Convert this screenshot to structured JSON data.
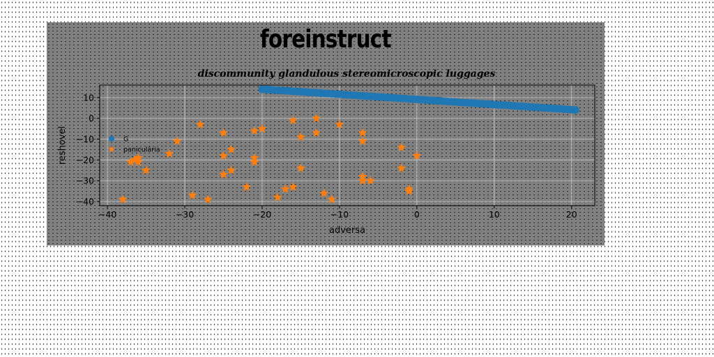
{
  "chart_data": {
    "type": "scatter",
    "title": "foreinstruct",
    "subtitle": "discommunity glandulous stereomicroscopic luggages",
    "xlabel": "adversa",
    "ylabel": "reshovel",
    "xlim": [
      -41,
      23
    ],
    "ylim": [
      -42,
      16
    ],
    "xticks": [
      -40,
      -30,
      -20,
      -10,
      0,
      10,
      20
    ],
    "yticks": [
      10,
      0,
      -10,
      -20,
      -30,
      -40
    ],
    "xtick_labels": [
      "−40",
      "−30",
      "−20",
      "−10",
      "0",
      "10",
      "20"
    ],
    "ytick_labels": [
      "10",
      "0",
      "−10",
      "−20",
      "−30",
      "−40"
    ],
    "grid": true,
    "legend_position": "center-left",
    "colors": {
      "G": "#1f77b4",
      "paniculária": "#ff7f0e",
      "panel": "#808080"
    },
    "series": [
      {
        "name": "G",
        "marker": "circle",
        "x": [
          -20.0,
          -19.5,
          -19.0,
          -18.5,
          -18.0,
          -17.5,
          -17.0,
          -16.5,
          -16.0,
          -15.5,
          -15.0,
          -14.5,
          -14.0,
          -13.5,
          -13.0,
          -12.5,
          -12.0,
          -11.5,
          -11.0,
          -10.5,
          -10.0,
          -9.5,
          -9.0,
          -8.5,
          -8.0,
          -7.5,
          -7.0,
          -6.5,
          -6.0,
          -5.5,
          -5.0,
          -4.5,
          -4.0,
          -3.5,
          -3.0,
          -2.5,
          -2.0,
          -1.5,
          -1.0,
          -0.5,
          0.0,
          0.5,
          1.0,
          1.5,
          2.0,
          2.5,
          3.0,
          3.5,
          4.0,
          4.5,
          5.0,
          5.5,
          6.0,
          6.5,
          7.0,
          7.5,
          8.0,
          8.5,
          9.0,
          9.5,
          10.0,
          10.5,
          11.0,
          11.5,
          12.0,
          12.5,
          13.0,
          13.5,
          14.0,
          14.5,
          15.0,
          15.5,
          16.0,
          16.5,
          17.0,
          17.5,
          18.0,
          18.5,
          19.0,
          19.5,
          20.0,
          20.5
        ],
        "y": [
          14.0,
          13.9,
          13.8,
          13.6,
          13.5,
          13.4,
          13.3,
          13.2,
          13.0,
          12.9,
          12.8,
          12.7,
          12.5,
          12.4,
          12.3,
          12.2,
          12.0,
          11.9,
          11.8,
          11.7,
          11.6,
          11.4,
          11.3,
          11.2,
          11.1,
          10.9,
          10.8,
          10.7,
          10.6,
          10.5,
          10.3,
          10.2,
          10.1,
          10.0,
          9.8,
          9.7,
          9.6,
          9.5,
          9.3,
          9.2,
          9.1,
          9.0,
          8.9,
          8.7,
          8.6,
          8.5,
          8.4,
          8.2,
          8.1,
          8.0,
          7.9,
          7.7,
          7.6,
          7.5,
          7.4,
          7.3,
          7.1,
          7.0,
          6.9,
          6.8,
          6.6,
          6.5,
          6.4,
          6.3,
          6.2,
          6.0,
          5.9,
          5.8,
          5.7,
          5.5,
          5.4,
          5.3,
          5.2,
          5.0,
          4.9,
          4.8,
          4.7,
          4.6,
          4.4,
          4.3,
          4.2,
          4.0
        ]
      },
      {
        "name": "paniculária",
        "marker": "star",
        "x": [
          -38,
          -37,
          -36.5,
          -36,
          -36,
          -35,
          -32,
          -31,
          -29,
          -28,
          -27,
          -25,
          -25,
          -25,
          -24,
          -24,
          -22,
          -21,
          -21,
          -21,
          -20,
          -18,
          -17,
          -16,
          -16,
          -15,
          -15,
          -13,
          -13,
          -12,
          -11,
          -10,
          -7,
          -7,
          -7,
          -7,
          -6,
          -2,
          -2,
          -1,
          -1,
          0
        ],
        "y": [
          -39,
          -21,
          -20,
          -21,
          -19,
          -25,
          -17,
          -11,
          -37,
          -3,
          -39,
          -7,
          -18,
          -27,
          -15,
          -25,
          -33,
          -6,
          -19,
          -21,
          -5,
          -38,
          -34,
          -1,
          -33,
          -9,
          -24,
          0,
          -7,
          -36,
          -39,
          -3,
          -7,
          -11,
          -28,
          -30,
          -30,
          -14,
          -24,
          -34,
          -35,
          -18
        ]
      }
    ]
  }
}
